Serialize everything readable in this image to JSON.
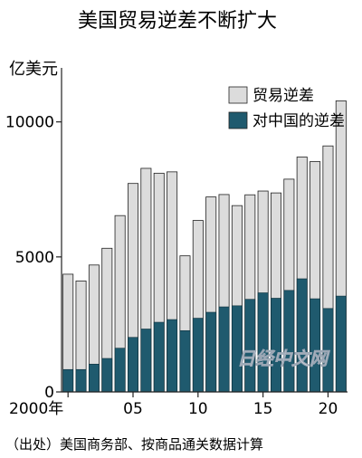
{
  "chart_data": {
    "type": "bar",
    "title": "美国贸易逆差不断扩大",
    "ylabel": "亿美元",
    "xlabel": "",
    "ylim": [
      0,
      12000
    ],
    "yticks": [
      "0",
      "5000",
      "10000"
    ],
    "x": [
      2000,
      2001,
      2002,
      2003,
      2004,
      2005,
      2006,
      2007,
      2008,
      2009,
      2010,
      2011,
      2012,
      2013,
      2014,
      2015,
      2016,
      2017,
      2018,
      2019,
      2020,
      2021
    ],
    "xticks": [
      "2000年",
      "05",
      "10",
      "15",
      "20"
    ],
    "series": [
      {
        "name": "贸易逆差",
        "color": "#dcdcdc",
        "values": [
          4360,
          4110,
          4700,
          5320,
          6530,
          7720,
          8280,
          8100,
          8150,
          5040,
          6350,
          7220,
          7310,
          6900,
          7300,
          7440,
          7370,
          7880,
          8700,
          8530,
          9110,
          10780
        ]
      },
      {
        "name": "对中国的逆差",
        "color": "#1f5a6e",
        "values": [
          830,
          830,
          1030,
          1240,
          1620,
          2020,
          2330,
          2580,
          2680,
          2270,
          2730,
          2950,
          3150,
          3190,
          3430,
          3670,
          3470,
          3760,
          4190,
          3450,
          3090,
          3550
        ]
      }
    ],
    "legend_position": "top-right",
    "grid": false
  },
  "source_note": "（出处）美国商务部、按商品通关数据计算",
  "watermark": "日经中文网"
}
